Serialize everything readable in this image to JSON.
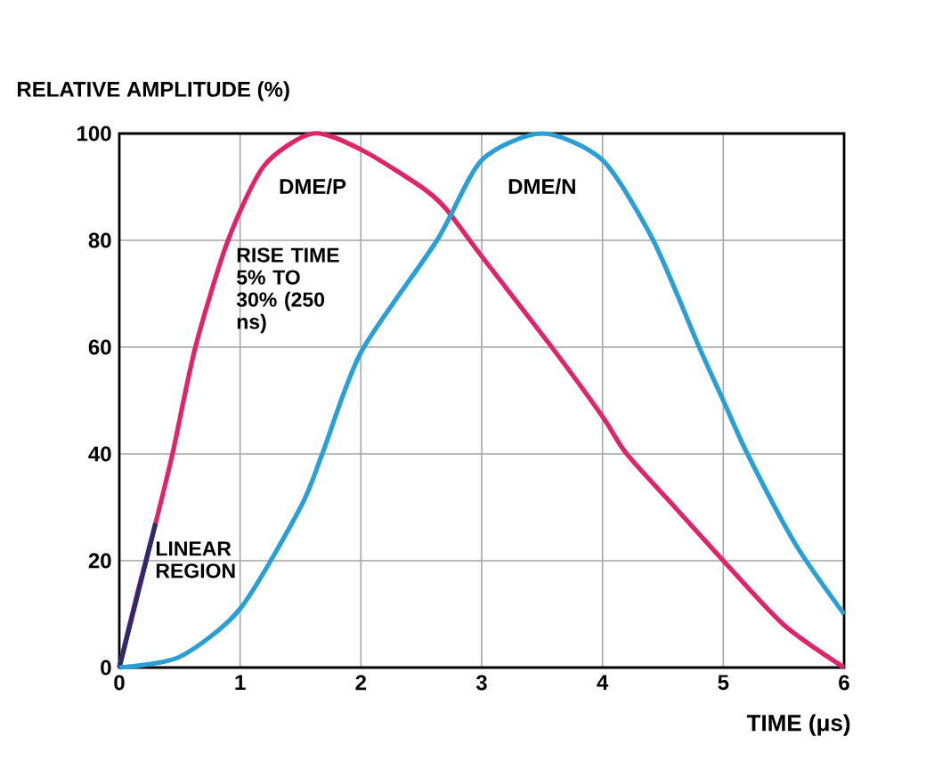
{
  "chart_data": {
    "type": "line",
    "xlabel": "TIME (μs)",
    "ylabel": "RELATIVE AMPLITUDE (%)",
    "xlim": [
      0,
      6
    ],
    "ylim": [
      0,
      100
    ],
    "xticks": [
      0,
      1,
      2,
      3,
      4,
      5,
      6
    ],
    "yticks": [
      0,
      20,
      40,
      60,
      80,
      100
    ],
    "grid": true,
    "line_style": "solid",
    "marker": "none",
    "series": [
      {
        "name": "DME/P",
        "color": "#e0246a",
        "x": [
          0,
          0.15,
          0.3,
          0.44,
          0.63,
          0.9,
          1.2,
          1.6,
          2,
          2.5,
          2.7,
          3,
          3.58,
          4,
          4.2,
          4.6,
          5,
          5.5,
          6
        ],
        "values": [
          0,
          14,
          27,
          40,
          60,
          80,
          94,
          100,
          97,
          90,
          86,
          77,
          60,
          47,
          40,
          30,
          20,
          8,
          0
        ]
      },
      {
        "color": "#2b2b6b",
        "x": [
          0,
          0.3
        ],
        "values": [
          0,
          27
        ]
      },
      {
        "name": "DME/N",
        "color": "#2a9fd6",
        "x": [
          0,
          0.5,
          1,
          1.5,
          1.68,
          2,
          2.63,
          3,
          3.5,
          4,
          4.42,
          4.8,
          5,
          5.2,
          5.6,
          6
        ],
        "values": [
          0,
          2,
          11,
          30,
          40,
          59,
          80,
          95,
          100,
          95,
          80,
          60,
          50,
          40,
          23,
          10
        ]
      }
    ],
    "annotations": [
      {
        "text": "RISE TIME 5% TO 30% (250 ns)",
        "x": 0.95,
        "y": 79
      },
      {
        "text": "LINEAR REGION",
        "x": 0.28,
        "y": 24
      }
    ]
  }
}
